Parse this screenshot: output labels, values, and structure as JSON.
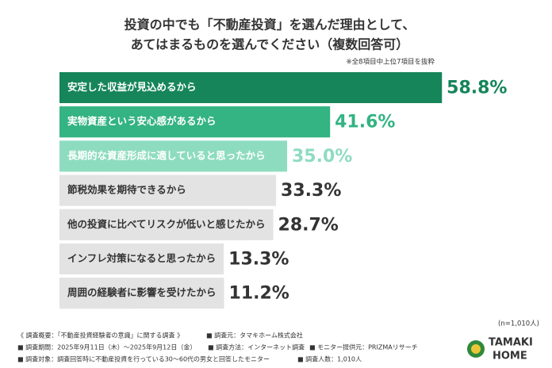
{
  "chart_data": {
    "type": "barh",
    "title": [
      "投資の中でも「不動産投資」を選んだ理由として、",
      "あてはまるものを選んでください（複数回答可）"
    ],
    "subtitle": "※全8項目中上位7項目を抜粋",
    "categories": [
      "安定した収益が見込めるから",
      "実物資産という安心感があるから",
      "長期的な資産形成に適していると思ったから",
      "節税効果を期待できるから",
      "他の投資に比べてリスクが低いと感じたから",
      "インフレ対策になると思ったから",
      "周囲の経験者に影響を受けたから"
    ],
    "values": [
      58.8,
      41.6,
      35.0,
      33.3,
      28.7,
      13.3,
      11.2
    ],
    "value_labels": [
      "58.8%",
      "41.6%",
      "35.0%",
      "33.3%",
      "28.7%",
      "13.3%",
      "11.2%"
    ],
    "colors": [
      "#16855a",
      "#34b383",
      "#8edcc0",
      "#e3e3e3",
      "#e3e3e3",
      "#e3e3e3",
      "#e3e3e3"
    ],
    "label_colors": [
      "#ffffff",
      "#ffffff",
      "#ffffff",
      "#333333",
      "#333333",
      "#333333",
      "#333333"
    ],
    "value_label_colors": [
      "#16855a",
      "#34b383",
      "#8edcc0",
      "#333333",
      "#333333",
      "#333333",
      "#333333"
    ],
    "xlim": [
      0,
      60
    ],
    "sample_size": "(n=1,010人)"
  },
  "footer": [
    [
      "《 調査概要：「不動産投資経験者の意識」に関する調査 》",
      "■ 調査元：タマキホーム株式会社"
    ],
    [
      "■ 調査期間：2025年9月11日（木）～2025年9月12日（金）",
      "■ 調査方法：インターネット調査",
      "■ モニター提供元：PRIZMAリサーチ"
    ],
    [
      "■ 調査対象：調査回答時に不動産投資を行っている30～60代の男女と回答したモニター",
      "■ 調査人数：1,010人"
    ]
  ],
  "logo": [
    "TAMAKI",
    "HOME"
  ]
}
